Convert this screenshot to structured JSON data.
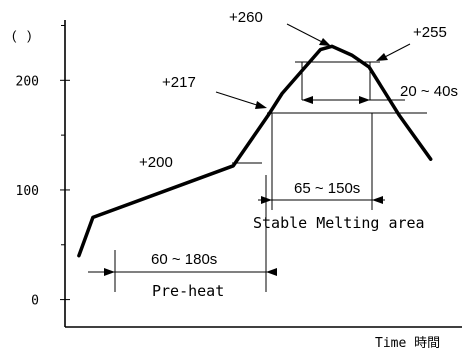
{
  "chart_data": {
    "type": "line",
    "title": "",
    "ylabel": "(   )",
    "xlabel": "Time 時間",
    "y_ticks": [
      {
        "value": 0,
        "label": "0"
      },
      {
        "value": 100,
        "label": "100"
      },
      {
        "value": 200,
        "label": "200"
      }
    ],
    "y_minor_ticks": [
      50,
      150,
      250
    ],
    "ylim": [
      -25,
      255
    ],
    "x_unit": "s",
    "xlim": [
      -12,
      330
    ],
    "series": [
      {
        "points": [
          [
            0,
            40
          ],
          [
            12,
            75
          ],
          [
            133,
            122
          ],
          [
            163,
            168
          ],
          [
            175,
            188
          ],
          [
            208,
            228
          ],
          [
            218,
            231
          ],
          [
            235,
            223
          ],
          [
            250,
            212
          ],
          [
            276,
            168
          ],
          [
            303,
            128
          ]
        ]
      }
    ],
    "annotations": [
      {
        "id": "peak",
        "label": "+260",
        "value": 260
      },
      {
        "id": "melt-end",
        "label": "+255",
        "value": 255
      },
      {
        "id": "melt-start",
        "label": "+217",
        "value": 217
      },
      {
        "id": "preheat-end",
        "label": "+200",
        "value": 200
      }
    ],
    "intervals": [
      {
        "id": "preheat",
        "range": "60 ~ 180s",
        "name": "Pre-heat"
      },
      {
        "id": "melting",
        "range": "65 ~ 150s",
        "name": "Stable Melting area"
      },
      {
        "id": "peak-zone",
        "range": "20 ~ 40s",
        "name": ""
      }
    ]
  }
}
